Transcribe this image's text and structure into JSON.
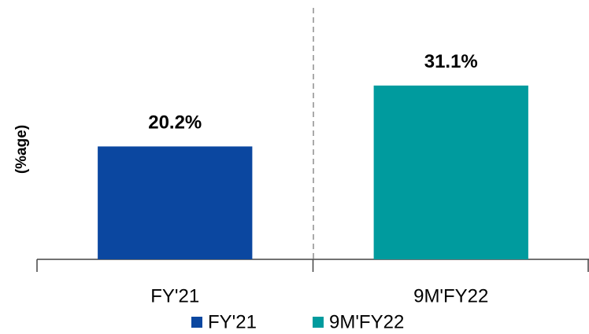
{
  "chart_data": {
    "type": "bar",
    "y_label": "(%age)",
    "categories": [
      "FY'21",
      "9M'FY22"
    ],
    "values": [
      20.2,
      31.1
    ],
    "value_labels": [
      "20.2%",
      "31.1%"
    ],
    "colors": [
      "#0b47a0",
      "#009b9e"
    ],
    "ylim": [
      0,
      45
    ]
  }
}
